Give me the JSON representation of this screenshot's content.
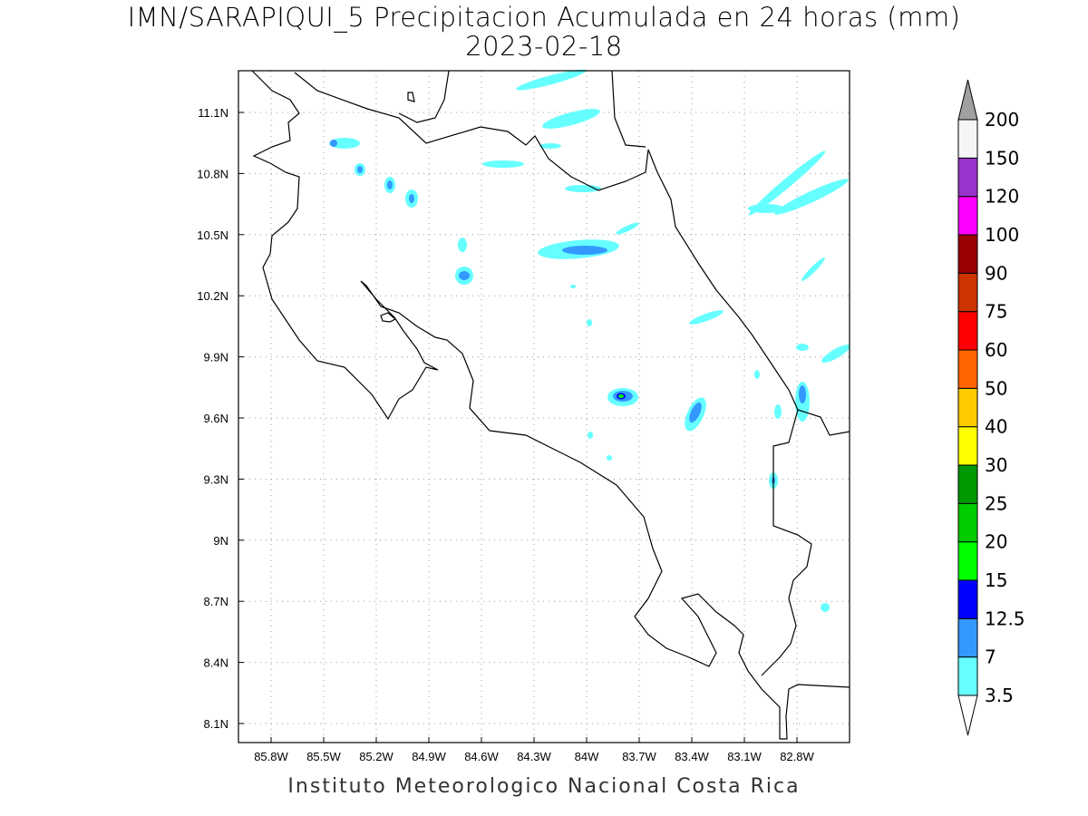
{
  "title": "IMN/SARAPIQUI_5 Precipitacion Acumulada en 24 horas (mm)",
  "subtitle": "2023-02-18",
  "footer": "Instituto Meteorologico Nacional Costa Rica",
  "map": {
    "variable": "Precipitacion Acumulada en 24 horas",
    "units": "mm",
    "lon_ticks": [
      "85.8W",
      "85.5W",
      "85.2W",
      "84.9W",
      "84.6W",
      "84.3W",
      "84W",
      "83.7W",
      "83.4W",
      "83.1W",
      "82.8W"
    ],
    "lat_ticks": [
      "11.1N",
      "10.8N",
      "10.5N",
      "10.2N",
      "9.9N",
      "9.6N",
      "9.3N",
      "9N",
      "8.7N",
      "8.4N",
      "8.1N"
    ],
    "grid": true
  },
  "colorbar": {
    "levels": [
      "3.5",
      "7",
      "12.5",
      "15",
      "20",
      "25",
      "30",
      "40",
      "50",
      "60",
      "75",
      "90",
      "100",
      "120",
      "150",
      "200"
    ],
    "colors": [
      "#66ffff",
      "#3399ff",
      "#0000ff",
      "#00ff00",
      "#00cc00",
      "#009900",
      "#ffff00",
      "#ffcc00",
      "#ff6600",
      "#ff0000",
      "#cc3300",
      "#990000",
      "#ff00ff",
      "#9933cc",
      "#f5f5f5"
    ],
    "over_color": "#a0a0a0",
    "under_color": "#ffffff"
  }
}
